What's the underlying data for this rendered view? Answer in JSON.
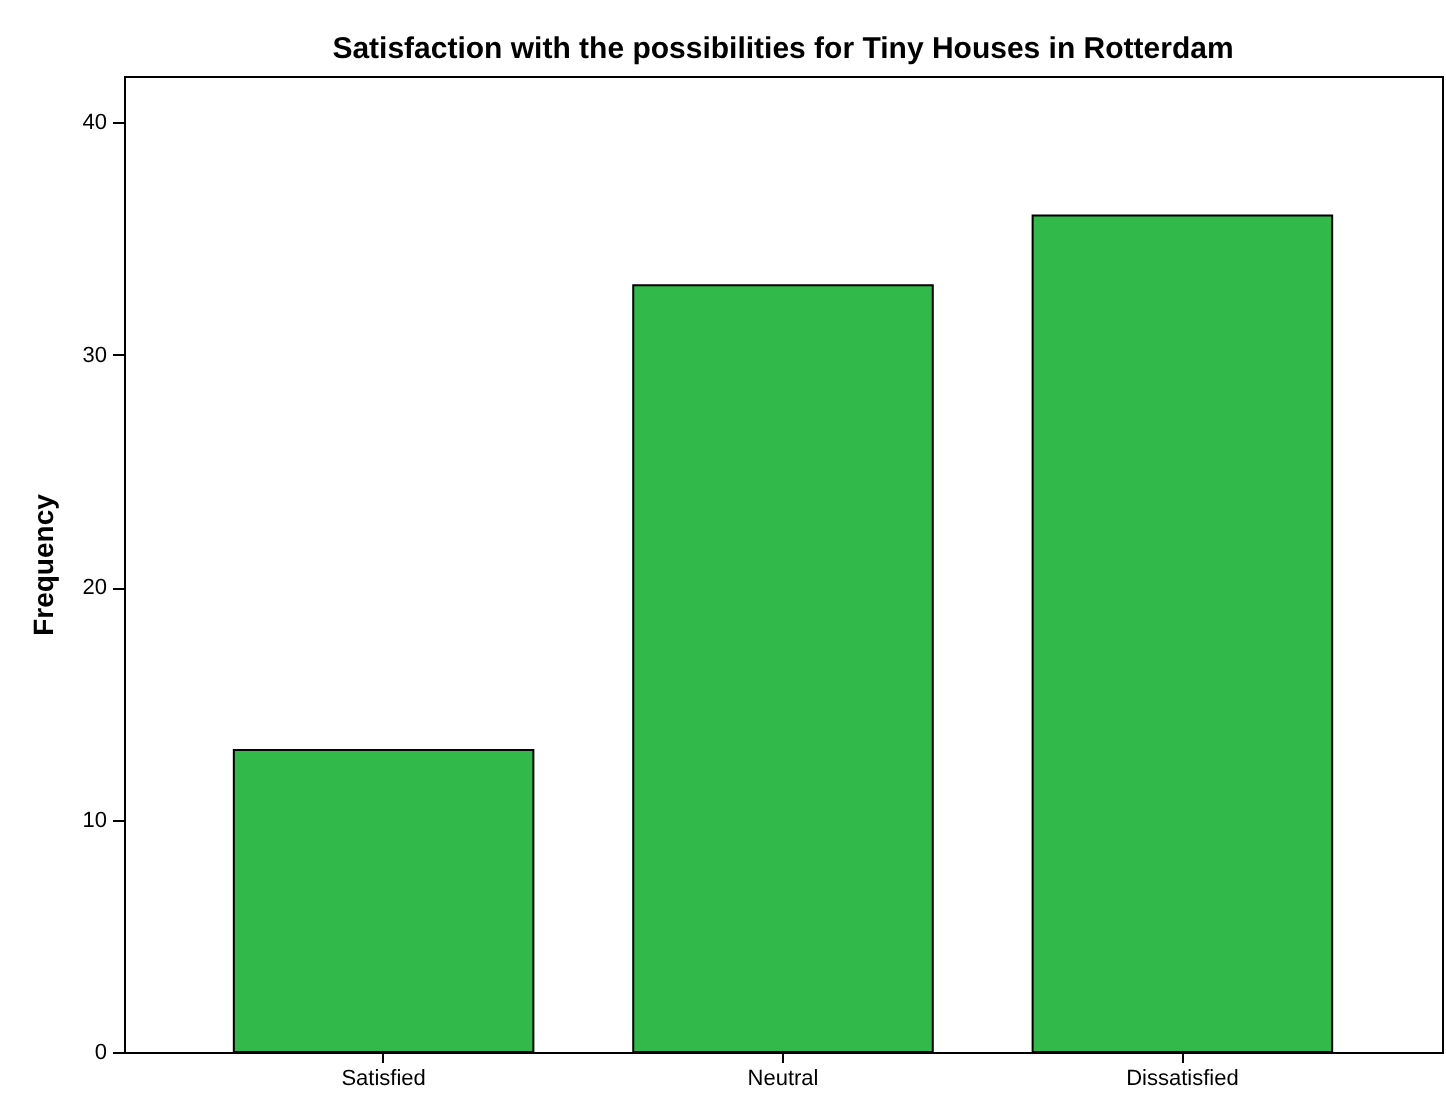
{
  "chart_data": {
    "type": "bar",
    "title": "Satisfaction with the possibilities for Tiny Houses in Rotterdam",
    "ylabel": "Frequency",
    "categories": [
      "Satisfied",
      "Neutral",
      "Dissatisfied"
    ],
    "values": [
      13,
      33,
      36
    ],
    "color": "#31b94a",
    "ylim": [
      0,
      42
    ],
    "yticks": [
      0,
      10,
      20,
      30,
      40
    ],
    "grid": false
  }
}
